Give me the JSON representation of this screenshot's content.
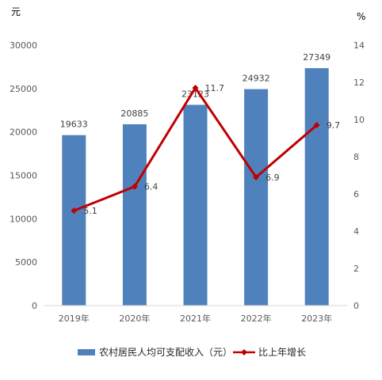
{
  "chart_data": {
    "type": "bar+line",
    "categories": [
      "2019年",
      "2020年",
      "2021年",
      "2022年",
      "2023年"
    ],
    "left_axis": {
      "unit": "元",
      "ticks": [
        "0",
        "5000",
        "10000",
        "15000",
        "20000",
        "25000",
        "30000"
      ],
      "ylim": [
        0,
        30000
      ]
    },
    "right_axis": {
      "unit": "%",
      "ticks": [
        "0",
        "2",
        "4",
        "6",
        "8",
        "10",
        "12",
        "14"
      ],
      "ylim": [
        0,
        14
      ]
    },
    "series": [
      {
        "name": "农村居民人均可支配收入（元）",
        "type": "bar",
        "axis": "left",
        "color": "#4f81bd",
        "values": [
          19633,
          20885,
          23123,
          24932,
          27349
        ],
        "labels": [
          "19633",
          "20885",
          "23123",
          "24932",
          "27349"
        ]
      },
      {
        "name": "比上年增长",
        "type": "line",
        "axis": "right",
        "color": "#c00000",
        "values": [
          5.1,
          6.4,
          11.7,
          6.9,
          9.7
        ],
        "labels": [
          "5.1",
          "6.4",
          "11.7",
          "6.9",
          "9.7"
        ]
      }
    ],
    "legend_position": "bottom",
    "grid": false
  }
}
